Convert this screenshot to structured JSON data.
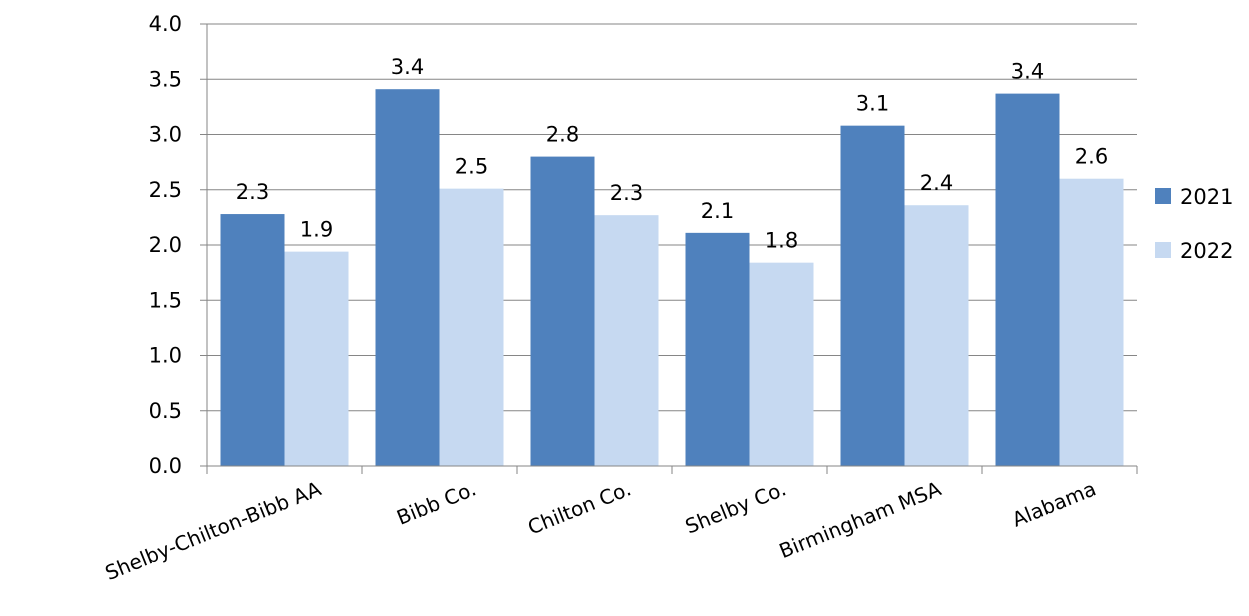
{
  "chart_data": {
    "type": "bar",
    "title": "",
    "xlabel": "",
    "ylabel": "",
    "ylim": [
      0,
      4.0
    ],
    "yticks": [
      "0.0",
      "0.5",
      "1.0",
      "1.5",
      "2.0",
      "2.5",
      "3.0",
      "3.5",
      "4.0"
    ],
    "grid": true,
    "legend_position": "right",
    "categories": [
      "Shelby-Chilton-Bibb AA",
      "Bibb Co.",
      "Chilton Co.",
      "Shelby Co.",
      "Birmingham MSA",
      "Alabama"
    ],
    "series": [
      {
        "name": "2021",
        "color": "#4F81BD",
        "values": [
          2.28,
          3.41,
          2.8,
          2.11,
          3.08,
          3.37
        ],
        "labels": [
          "2.3",
          "3.4",
          "2.8",
          "2.1",
          "3.1",
          "3.4"
        ]
      },
      {
        "name": "2022",
        "color": "#C6D9F1",
        "values": [
          1.94,
          2.51,
          2.27,
          1.84,
          2.36,
          2.6
        ],
        "labels": [
          "1.9",
          "2.5",
          "2.3",
          "1.8",
          "2.4",
          "2.6"
        ]
      }
    ]
  }
}
